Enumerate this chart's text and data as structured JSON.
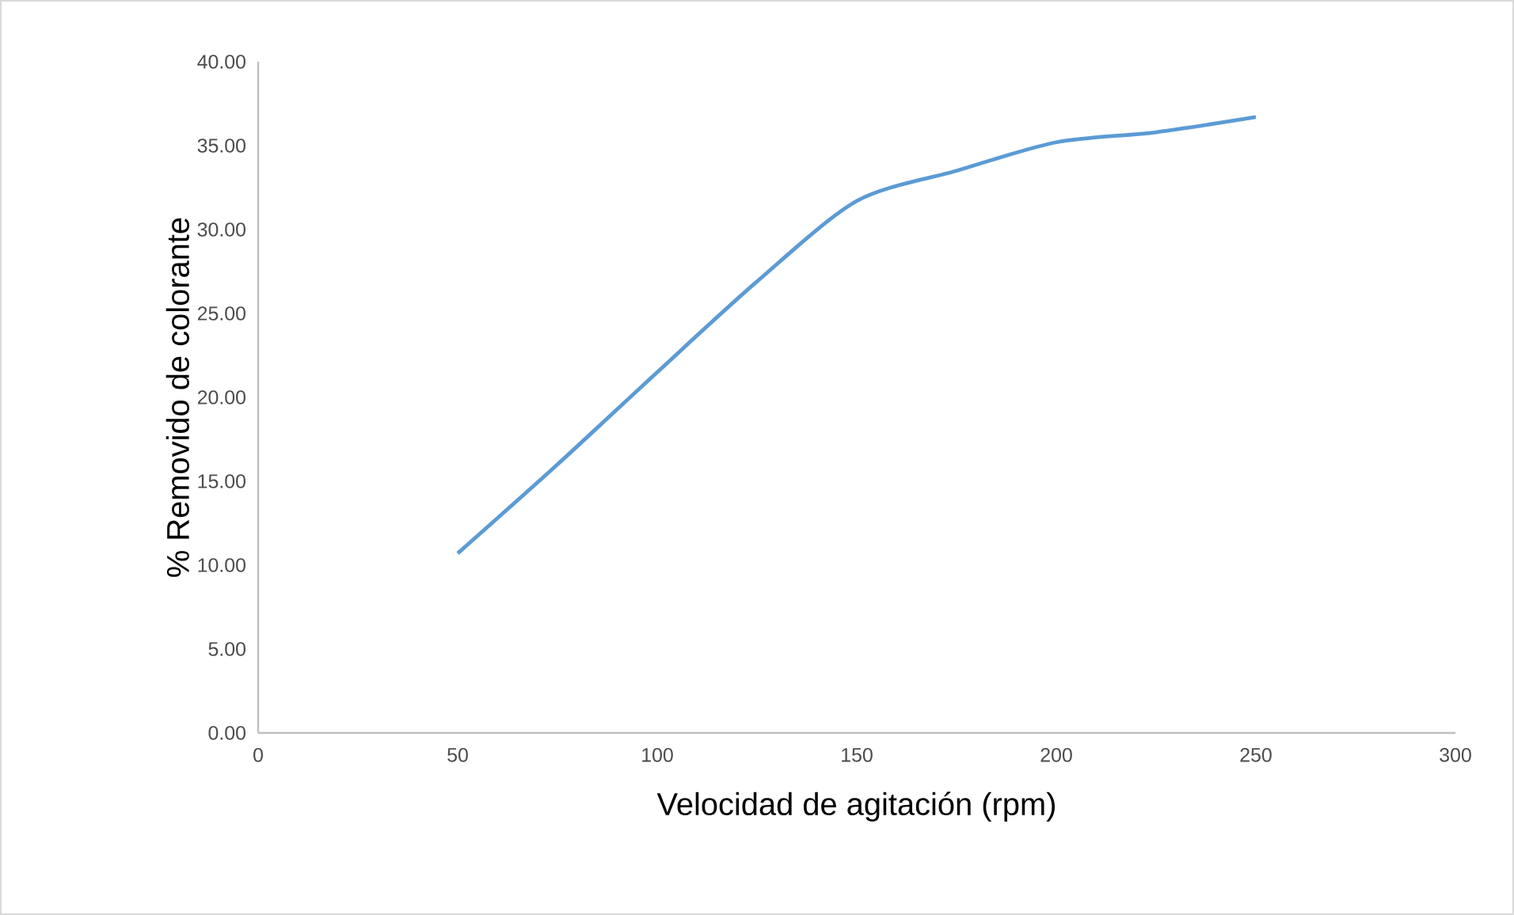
{
  "chart_data": {
    "type": "line",
    "xlabel": "Velocidad de agitación (rpm)",
    "ylabel": "% Removido de colorante",
    "x": [
      50,
      75,
      100,
      125,
      150,
      175,
      200,
      225,
      250
    ],
    "series": [
      {
        "color": "#5b9bd5",
        "values": [
          10.7,
          16.0,
          21.5,
          26.9,
          31.7,
          33.5,
          35.2,
          35.8,
          36.7
        ]
      }
    ],
    "xlim": [
      0,
      300
    ],
    "xticks": [
      0,
      50,
      100,
      150,
      200,
      250,
      300
    ],
    "ylim": [
      0,
      40
    ],
    "yticks": [
      {
        "value": 0,
        "label": "0.00"
      },
      {
        "value": 5,
        "label": "5.00"
      },
      {
        "value": 10,
        "label": "10.00"
      },
      {
        "value": 15,
        "label": "15.00"
      },
      {
        "value": 20,
        "label": "20.00"
      },
      {
        "value": 25,
        "label": "25.00"
      },
      {
        "value": 30,
        "label": "30.00"
      },
      {
        "value": 35,
        "label": "35.00"
      },
      {
        "value": 40,
        "label": "40.00"
      }
    ],
    "grid": false,
    "marker": "none",
    "line_style": "solid"
  }
}
